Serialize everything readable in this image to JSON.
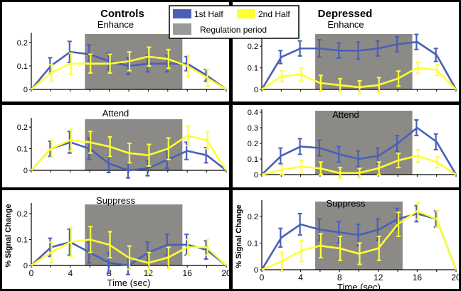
{
  "figure": {
    "column_titles": [
      "Controls",
      "Depressed"
    ],
    "legend": {
      "items": [
        {
          "label": "1st Half",
          "color": "#4a5fb8"
        },
        {
          "label": "2nd Half",
          "color": "#ffff33"
        },
        {
          "label": "Regulation period",
          "color": "#9a9a9a"
        }
      ]
    },
    "xlabel": "Time (sec)",
    "ylabel": "% Signal Change"
  },
  "colors": {
    "first_half": "#4a5fb8",
    "second_half": "#ffff33",
    "regulation": "#8c8a86",
    "panel_bg": "#ffffff",
    "figure_bg": "#000000"
  },
  "chart_data": [
    {
      "type": "line",
      "group": "Controls",
      "title": "Enhance",
      "x": [
        0,
        2,
        4,
        6,
        8,
        10,
        12,
        14,
        16,
        18,
        20
      ],
      "ylim": [
        0,
        0.23
      ],
      "yticks": [
        0,
        0.1,
        0.2
      ],
      "regulation_period": [
        5.5,
        15.5
      ],
      "series": [
        {
          "name": "1st Half",
          "values": [
            0,
            0.1,
            0.16,
            0.15,
            0.12,
            0.1,
            0.11,
            0.11,
            0.11,
            0.06,
            0
          ],
          "errors": [
            0,
            0.035,
            0.045,
            0.04,
            0.035,
            0.035,
            0.035,
            0.035,
            0.03,
            0.025,
            0
          ]
        },
        {
          "name": "2nd Half",
          "values": [
            0,
            0.07,
            0.11,
            0.11,
            0.11,
            0.12,
            0.14,
            0.13,
            0.1,
            0.05,
            0
          ],
          "errors": [
            0,
            0.035,
            0.045,
            0.04,
            0.04,
            0.04,
            0.04,
            0.04,
            0.045,
            0.035,
            0
          ]
        }
      ]
    },
    {
      "type": "line",
      "group": "Depressed",
      "title": "Enhance",
      "x": [
        0,
        2,
        4,
        6,
        8,
        10,
        12,
        14,
        16,
        18,
        20
      ],
      "ylim": [
        0,
        0.25
      ],
      "yticks": [
        0,
        0.1,
        0.2
      ],
      "regulation_period": [
        5.5,
        15.5
      ],
      "series": [
        {
          "name": "1st Half",
          "values": [
            0,
            0.15,
            0.19,
            0.19,
            0.18,
            0.18,
            0.19,
            0.21,
            0.22,
            0.16,
            0
          ],
          "errors": [
            0,
            0.03,
            0.035,
            0.04,
            0.035,
            0.04,
            0.035,
            0.035,
            0.035,
            0.03,
            0
          ]
        },
        {
          "name": "2nd Half",
          "values": [
            0,
            0.06,
            0.07,
            0.03,
            0.02,
            0.01,
            0.02,
            0.05,
            0.1,
            0.09,
            0
          ],
          "errors": [
            0,
            0.025,
            0.03,
            0.035,
            0.03,
            0.03,
            0.035,
            0.035,
            0.025,
            0.025,
            0
          ]
        }
      ]
    },
    {
      "type": "line",
      "group": "Controls",
      "title": "Attend",
      "x": [
        0,
        2,
        4,
        6,
        8,
        10,
        12,
        14,
        16,
        18,
        20
      ],
      "ylim": [
        0,
        0.23
      ],
      "yticks": [
        0,
        0.1,
        0.2
      ],
      "regulation_period": [
        5.5,
        15.5
      ],
      "series": [
        {
          "name": "1st Half",
          "values": [
            0,
            0.1,
            0.13,
            0.1,
            0.03,
            0.0,
            0.01,
            0.05,
            0.09,
            0.07,
            0
          ],
          "errors": [
            0,
            0.035,
            0.05,
            0.05,
            0.04,
            0.035,
            0.035,
            0.04,
            0.04,
            0.035,
            0
          ]
        },
        {
          "name": "2nd Half",
          "values": [
            0,
            0.1,
            0.14,
            0.13,
            0.11,
            0.08,
            0.07,
            0.1,
            0.16,
            0.14,
            0
          ],
          "errors": [
            0,
            0.04,
            0.05,
            0.05,
            0.045,
            0.045,
            0.05,
            0.05,
            0.045,
            0.04,
            0
          ]
        }
      ]
    },
    {
      "type": "line",
      "group": "Depressed",
      "title": "Attend",
      "x": [
        0,
        2,
        4,
        6,
        8,
        10,
        12,
        14,
        16,
        18,
        20
      ],
      "ylim": [
        0,
        0.4
      ],
      "yticks": [
        0,
        0.1,
        0.2,
        0.3,
        0.4
      ],
      "regulation_period": [
        5.5,
        15.5
      ],
      "series": [
        {
          "name": "1st Half",
          "values": [
            0,
            0.12,
            0.18,
            0.17,
            0.13,
            0.1,
            0.12,
            0.2,
            0.3,
            0.21,
            0
          ],
          "errors": [
            0,
            0.05,
            0.05,
            0.05,
            0.05,
            0.05,
            0.05,
            0.05,
            0.05,
            0.05,
            0
          ]
        },
        {
          "name": "2nd Half",
          "values": [
            0,
            0.03,
            0.05,
            0.04,
            0.01,
            0.01,
            0.04,
            0.09,
            0.12,
            0.08,
            0
          ],
          "errors": [
            0,
            0.03,
            0.04,
            0.04,
            0.035,
            0.03,
            0.04,
            0.045,
            0.04,
            0.035,
            0
          ]
        }
      ]
    },
    {
      "type": "line",
      "group": "Controls",
      "title": "Suppress",
      "x": [
        0,
        2,
        4,
        6,
        8,
        10,
        12,
        14,
        16,
        18,
        20
      ],
      "ylim": [
        0,
        0.23
      ],
      "yticks": [
        0,
        0.1,
        0.2
      ],
      "regulation_period": [
        5.5,
        15.5
      ],
      "series": [
        {
          "name": "1st Half",
          "values": [
            0,
            0.07,
            0.09,
            0.05,
            0.01,
            0.0,
            0.05,
            0.08,
            0.08,
            0.06,
            0
          ],
          "errors": [
            0,
            0.035,
            0.05,
            0.04,
            0.04,
            0.035,
            0.04,
            0.04,
            0.04,
            0.035,
            0
          ]
        },
        {
          "name": "2nd Half",
          "values": [
            0,
            0.05,
            0.09,
            0.1,
            0.08,
            0.03,
            0.01,
            0.03,
            0.07,
            0.07,
            0
          ],
          "errors": [
            0,
            0.04,
            0.055,
            0.05,
            0.05,
            0.045,
            0.04,
            0.04,
            0.03,
            0.03,
            0
          ]
        }
      ]
    },
    {
      "type": "line",
      "group": "Depressed",
      "title": "Suppress",
      "x": [
        0,
        2,
        4,
        6,
        8,
        10,
        12,
        14,
        16,
        18,
        20
      ],
      "ylim": [
        0,
        0.25
      ],
      "yticks": [
        0,
        0.1,
        0.2
      ],
      "regulation_period": [
        5.5,
        14.5
      ],
      "series": [
        {
          "name": "1st Half",
          "values": [
            0,
            0.12,
            0.17,
            0.15,
            0.14,
            0.13,
            0.15,
            0.19,
            0.21,
            0.19,
            0
          ],
          "errors": [
            0,
            0.035,
            0.04,
            0.04,
            0.04,
            0.04,
            0.04,
            0.04,
            0.03,
            0.03,
            0
          ]
        },
        {
          "name": "2nd Half",
          "values": [
            0,
            0.03,
            0.07,
            0.09,
            0.08,
            0.06,
            0.08,
            0.17,
            0.22,
            0.19,
            0
          ],
          "errors": [
            0,
            0.035,
            0.04,
            0.045,
            0.045,
            0.04,
            0.045,
            0.045,
            0.03,
            0.03,
            0
          ]
        }
      ]
    }
  ]
}
